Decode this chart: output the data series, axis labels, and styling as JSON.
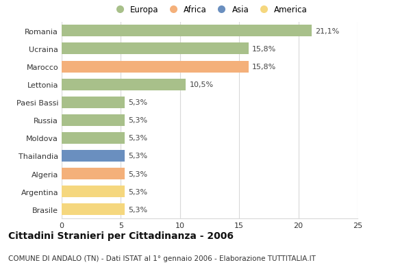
{
  "categories": [
    "Romania",
    "Ucraina",
    "Marocco",
    "Lettonia",
    "Paesi Bassi",
    "Russia",
    "Moldova",
    "Thailandia",
    "Algeria",
    "Argentina",
    "Brasile"
  ],
  "values": [
    21.1,
    15.8,
    15.8,
    10.5,
    5.3,
    5.3,
    5.3,
    5.3,
    5.3,
    5.3,
    5.3
  ],
  "labels": [
    "21,1%",
    "15,8%",
    "15,8%",
    "10,5%",
    "5,3%",
    "5,3%",
    "5,3%",
    "5,3%",
    "5,3%",
    "5,3%",
    "5,3%"
  ],
  "colors": [
    "#a8c08a",
    "#a8c08a",
    "#f4b07a",
    "#a8c08a",
    "#a8c08a",
    "#a8c08a",
    "#a8c08a",
    "#6a8fbf",
    "#f4b07a",
    "#f5d77e",
    "#f5d77e"
  ],
  "legend_labels": [
    "Europa",
    "Africa",
    "Asia",
    "America"
  ],
  "legend_colors": [
    "#a8c08a",
    "#f4b07a",
    "#6a8fbf",
    "#f5d77e"
  ],
  "xlim": [
    0,
    25
  ],
  "xticks": [
    0,
    5,
    10,
    15,
    20,
    25
  ],
  "title": "Cittadini Stranieri per Cittadinanza - 2006",
  "subtitle": "COMUNE DI ANDALO (TN) - Dati ISTAT al 1° gennaio 2006 - Elaborazione TUTTITALIA.IT",
  "background_color": "#ffffff",
  "grid_color": "#d8d8d8",
  "bar_height": 0.65,
  "title_fontsize": 10,
  "subtitle_fontsize": 7.5,
  "label_fontsize": 8,
  "tick_fontsize": 8,
  "legend_fontsize": 8.5
}
